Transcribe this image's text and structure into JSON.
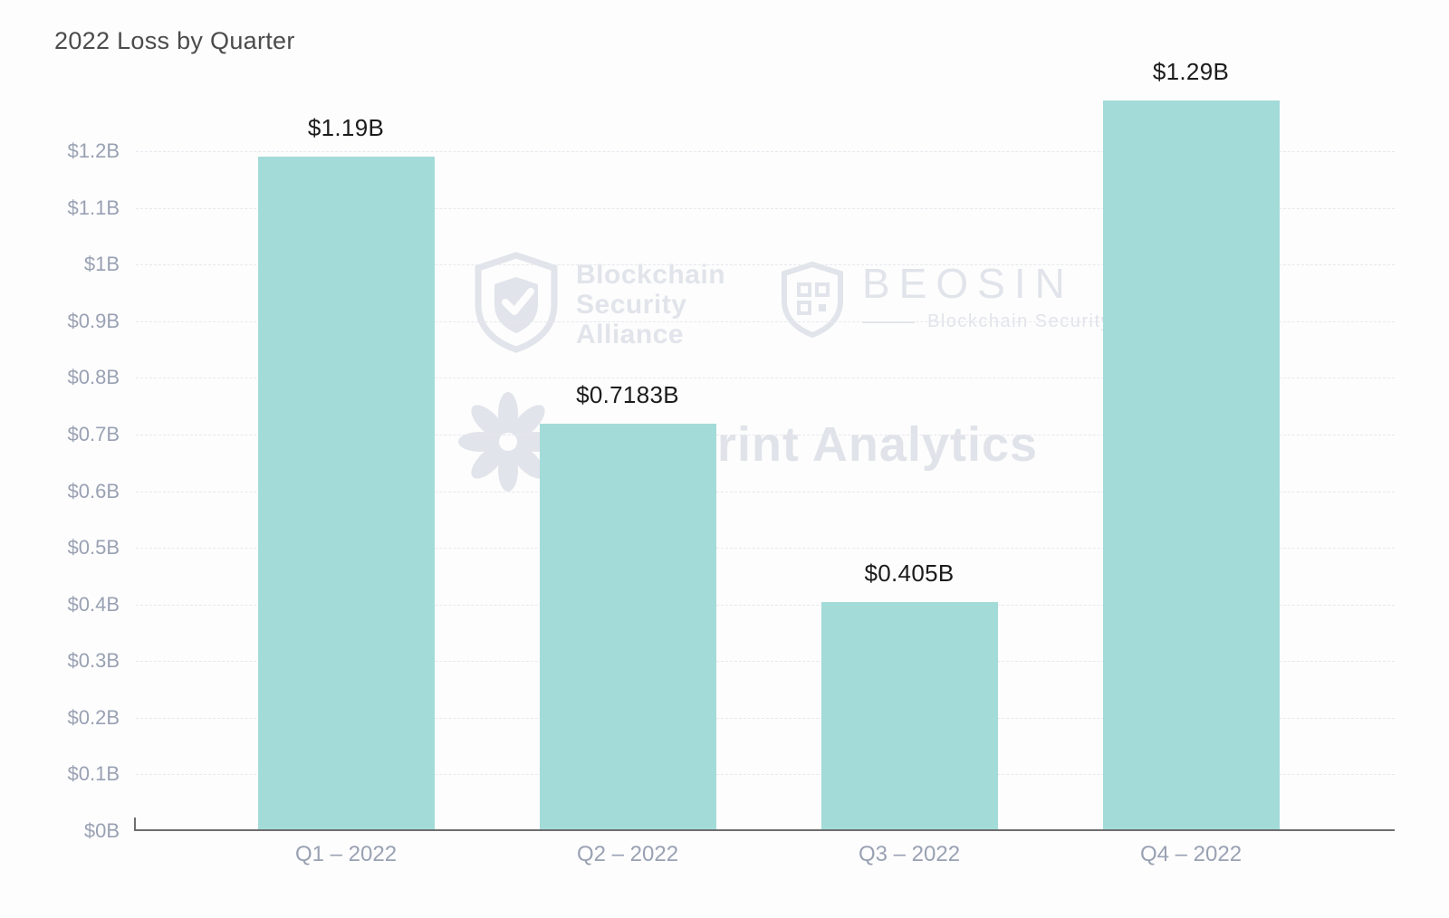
{
  "title": "2022 Loss by Quarter",
  "watermarks": {
    "bsa": {
      "lines": [
        "Blockchain",
        "Security",
        "Alliance"
      ]
    },
    "beosin": {
      "name": "BEOSIN",
      "subtitle": "Blockchain Security"
    },
    "footprint": {
      "label": "Footprint Analytics"
    }
  },
  "chart_data": {
    "type": "bar",
    "title": "2022 Loss by Quarter",
    "categories": [
      "Q1 – 2022",
      "Q2 – 2022",
      "Q3 – 2022",
      "Q4 – 2022"
    ],
    "values": [
      1.19,
      0.7183,
      0.405,
      1.29
    ],
    "value_labels": [
      "$1.19B",
      "$0.7183B",
      "$0.405B",
      "$1.29B"
    ],
    "xlabel": "",
    "ylabel": "",
    "ylim": [
      0,
      1.3
    ],
    "yticks": [
      0,
      0.1,
      0.2,
      0.3,
      0.4,
      0.5,
      0.6,
      0.7,
      0.8,
      0.9,
      1.0,
      1.1,
      1.2
    ],
    "ytick_labels": [
      "$0B",
      "$0.1B",
      "$0.2B",
      "$0.3B",
      "$0.4B",
      "$0.5B",
      "$0.6B",
      "$0.7B",
      "$0.8B",
      "$0.9B",
      "$1B",
      "$1.1B",
      "$1.2B"
    ],
    "bar_color": "#a3dbd8",
    "grid": true,
    "legend": "none"
  }
}
